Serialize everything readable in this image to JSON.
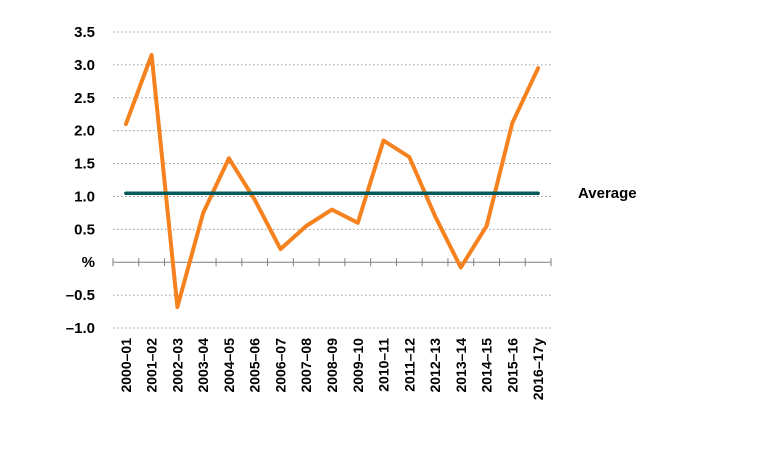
{
  "chart_data": {
    "type": "line",
    "categories": [
      "2000–01",
      "2001–02",
      "2002–03",
      "2003–04",
      "2004–05",
      "2005–06",
      "2006–07",
      "2007–08",
      "2008–09",
      "2009–10",
      "2010–11",
      "2011–12",
      "2012–13",
      "2013–14",
      "2014–15",
      "2015–16",
      "2016–17y"
    ],
    "series": [
      {
        "values": [
          2.1,
          3.15,
          -0.68,
          0.75,
          1.58,
          0.95,
          0.2,
          0.55,
          0.8,
          0.6,
          1.85,
          1.6,
          0.7,
          -0.08,
          0.55,
          2.12,
          2.95
        ],
        "color": "#F5821F"
      },
      {
        "name": "Average",
        "values": [
          1.05,
          1.05,
          1.05,
          1.05,
          1.05,
          1.05,
          1.05,
          1.05,
          1.05,
          1.05,
          1.05,
          1.05,
          1.05,
          1.05,
          1.05,
          1.05,
          1.05
        ],
        "color": "#005A5B"
      }
    ],
    "y_ticks": [
      "3.5",
      "3.0",
      "2.5",
      "2.0",
      "1.5",
      "1.0",
      "0.5",
      "%",
      "–0.5",
      "–1.0"
    ],
    "y_tick_values": [
      3.5,
      3.0,
      2.5,
      2.0,
      1.5,
      1.0,
      0.5,
      0,
      -0.5,
      -1.0
    ],
    "ylim": [
      -1.0,
      3.5
    ],
    "grid": true,
    "title": "",
    "xlabel": "",
    "ylabel": ""
  }
}
